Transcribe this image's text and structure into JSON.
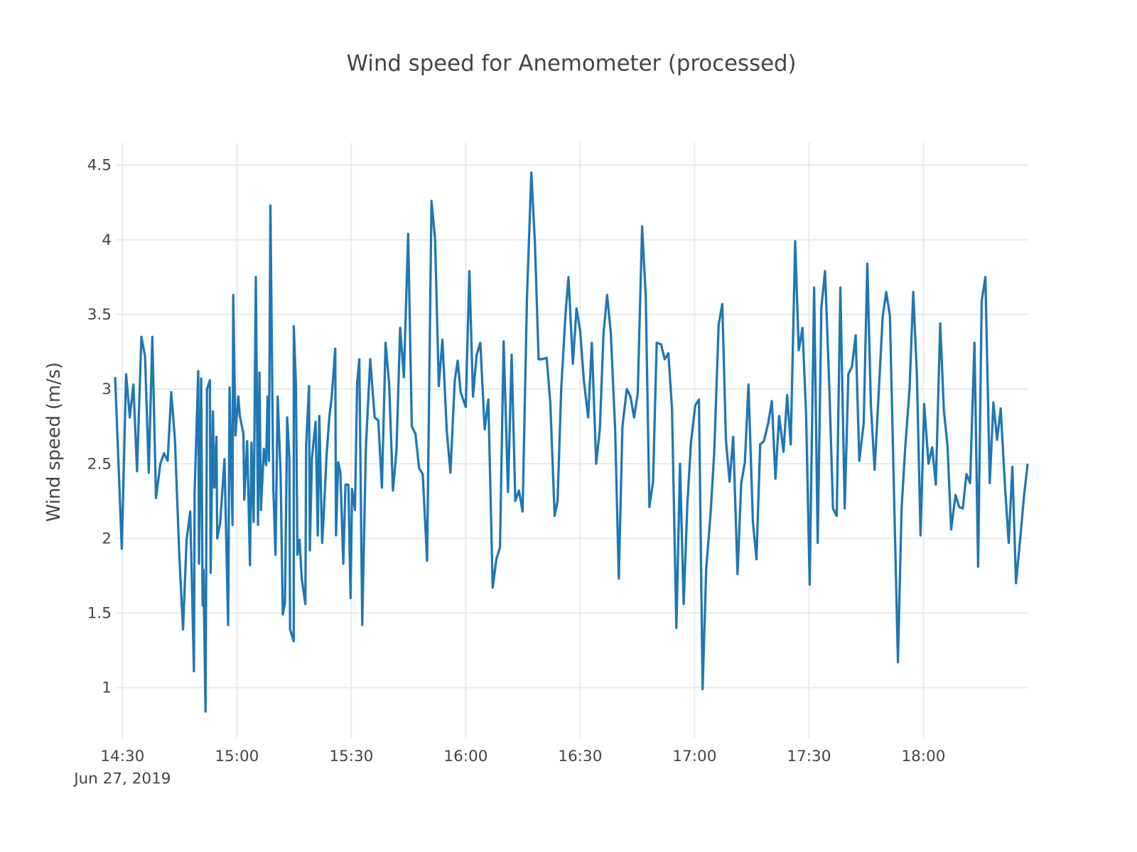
{
  "chart_data": {
    "type": "line",
    "title": "Wind speed for Anemometer (processed)",
    "xlabel": "",
    "ylabel": "Wind speed (m/s)",
    "date": "2019-06-27",
    "xlim": [
      "14:28:05",
      "18:27:20"
    ],
    "ylim": [
      0.66,
      4.65
    ],
    "grid": true,
    "line_color": "#1f77b4",
    "x_ticks": [
      {
        "t": "14:30:00",
        "label": "14:30",
        "sublabel": "Jun 27, 2019"
      },
      {
        "t": "15:00:00",
        "label": "15:00"
      },
      {
        "t": "15:30:00",
        "label": "15:30"
      },
      {
        "t": "16:00:00",
        "label": "16:00"
      },
      {
        "t": "16:30:00",
        "label": "16:30"
      },
      {
        "t": "17:00:00",
        "label": "17:00"
      },
      {
        "t": "17:30:00",
        "label": "17:30"
      },
      {
        "t": "18:00:00",
        "label": "18:00"
      }
    ],
    "y_ticks": [
      {
        "v": 1,
        "label": "1"
      },
      {
        "v": 1.5,
        "label": "1.5"
      },
      {
        "v": 2,
        "label": "2"
      },
      {
        "v": 2.5,
        "label": "2.5"
      },
      {
        "v": 3,
        "label": "3"
      },
      {
        "v": 3.5,
        "label": "3.5"
      },
      {
        "v": 4,
        "label": "4"
      },
      {
        "v": 4.5,
        "label": "4.5"
      }
    ],
    "series": [
      {
        "x": [
          "14:28:05",
          "14:29:49",
          "14:30:57",
          "14:31:55",
          "14:32:52",
          "14:33:49",
          "14:34:58",
          "14:35:55",
          "14:36:53",
          "14:37:50",
          "14:38:47",
          "14:39:56",
          "14:40:53",
          "14:41:51",
          "14:42:48",
          "14:43:45",
          "14:44:54",
          "14:45:52",
          "14:46:49",
          "14:47:46",
          "14:48:44",
          "14:48:55",
          "14:49:52",
          "14:50:04",
          "14:50:38",
          "14:51:01",
          "14:51:13",
          "14:51:47",
          "14:52:10",
          "14:52:56",
          "14:53:07",
          "14:53:42",
          "14:54:05",
          "14:54:39",
          "14:54:50",
          "14:55:36",
          "14:56:45",
          "14:57:42",
          "14:58:05",
          "14:58:51",
          "14:59:03",
          "14:59:37",
          "15:00:23",
          "15:00:46",
          "15:01:43",
          "15:01:55",
          "15:02:41",
          "15:03:26",
          "15:03:49",
          "15:04:24",
          "15:04:58",
          "15:05:32",
          "15:05:55",
          "15:06:18",
          "15:07:04",
          "15:07:39",
          "15:08:02",
          "15:08:24",
          "15:08:47",
          "15:09:33",
          "15:10:08",
          "15:10:42",
          "15:11:28",
          "15:12:02",
          "15:12:37",
          "15:13:11",
          "15:13:45",
          "15:13:57",
          "15:14:54",
          "15:14:55",
          "15:15:29",
          "15:15:52",
          "15:16:26",
          "15:17:00",
          "15:17:58",
          "15:18:09",
          "15:18:55",
          "15:19:07",
          "15:19:41",
          "15:20:38",
          "15:21:13",
          "15:21:36",
          "15:22:21",
          "15:22:44",
          "15:23:30",
          "15:24:16",
          "15:24:50",
          "15:25:48",
          "15:25:59",
          "15:26:34",
          "15:27:08",
          "15:27:54",
          "15:28:28",
          "15:29:14",
          "15:29:48",
          "15:30:11",
          "15:30:57",
          "15:31:32",
          "15:32:06",
          "15:32:52",
          "15:33:49",
          "15:34:58",
          "15:36:07",
          "15:37:04",
          "15:38:02",
          "15:38:59",
          "15:39:56",
          "15:40:54",
          "15:41:51",
          "15:42:48",
          "15:43:46",
          "15:44:54",
          "15:45:52",
          "15:46:49",
          "15:47:46",
          "15:48:44",
          "15:49:52",
          "15:51:01",
          "15:51:58",
          "15:52:56",
          "15:53:53",
          "15:55:02",
          "15:55:59",
          "15:57:08",
          "15:57:54",
          "15:58:40",
          "16:00:00",
          "16:00:57",
          "16:01:55",
          "16:02:52",
          "16:03:49",
          "16:04:58",
          "16:05:55",
          "16:07:04",
          "16:08:01",
          "16:08:59",
          "16:09:56",
          "16:11:05",
          "16:12:02",
          "16:13:00",
          "16:13:57",
          "16:14:54",
          "16:16:03",
          "16:17:12",
          "16:18:09",
          "16:19:06",
          "16:20:04",
          "16:21:13",
          "16:22:10",
          "16:23:19",
          "16:24:05",
          "16:25:02",
          "16:26:11",
          "16:26:57",
          "16:28:06",
          "16:29:03",
          "16:30:00",
          "16:30:57",
          "16:32:06",
          "16:33:04",
          "16:34:12",
          "16:35:10",
          "16:36:07",
          "16:37:04",
          "16:38:02",
          "16:39:11",
          "16:40:08",
          "16:41:05",
          "16:42:14",
          "16:43:11",
          "16:44:08",
          "16:45:06",
          "16:46:15",
          "16:47:12",
          "16:48:09",
          "16:49:07",
          "16:50:04",
          "16:51:13",
          "16:52:10",
          "16:53:07",
          "16:54:05",
          "16:55:13",
          "16:56:11",
          "16:57:08",
          "16:58:05",
          "16:59:03",
          "17:00:11",
          "17:01:09",
          "17:02:06",
          "17:03:03",
          "17:04:12",
          "17:05:10",
          "17:06:18",
          "17:07:16",
          "17:08:13",
          "17:09:10",
          "17:10:08",
          "17:11:16",
          "17:12:14",
          "17:13:11",
          "17:14:08",
          "17:15:17",
          "17:16:14",
          "17:17:12",
          "17:18:09",
          "17:19:18",
          "17:20:15",
          "17:21:12",
          "17:22:10",
          "17:23:19",
          "17:24:16",
          "17:25:13",
          "17:26:22",
          "17:27:19",
          "17:28:17",
          "17:29:14",
          "17:30:11",
          "17:31:20",
          "17:32:17",
          "17:33:15",
          "17:34:12",
          "17:35:21",
          "17:36:18",
          "17:37:16",
          "17:38:13",
          "17:39:22",
          "17:40:19",
          "17:41:16",
          "17:42:14",
          "17:43:11",
          "17:44:20",
          "17:45:17",
          "17:46:14",
          "17:47:12",
          "17:48:20",
          "17:49:18",
          "17:50:15",
          "17:51:13",
          "17:52:10",
          "17:53:19",
          "17:54:16",
          "17:55:13",
          "17:56:22",
          "17:57:20",
          "17:58:17",
          "17:59:14",
          "18:00:12",
          "18:01:20",
          "18:02:18",
          "18:03:15",
          "18:04:24",
          "18:05:21",
          "18:06:19",
          "18:07:16",
          "18:08:25",
          "18:09:22",
          "18:10:19",
          "18:11:17",
          "18:12:14",
          "18:13:23",
          "18:14:20",
          "18:15:17",
          "18:16:15",
          "18:17:24",
          "18:18:21",
          "18:19:18",
          "18:20:16",
          "18:21:24",
          "18:22:22",
          "18:23:19",
          "18:24:16",
          "18:25:25",
          "18:26:22",
          "18:27:20"
        ],
        "y": [
          3.08,
          1.93,
          3.1,
          2.81,
          3.03,
          2.45,
          3.35,
          3.22,
          2.44,
          3.35,
          2.27,
          2.5,
          2.57,
          2.52,
          2.98,
          2.66,
          1.89,
          1.39,
          1.99,
          2.18,
          1.11,
          2.3,
          3.12,
          1.83,
          3.07,
          1.55,
          1.79,
          0.84,
          3.0,
          3.06,
          1.77,
          2.85,
          2.34,
          2.68,
          2.0,
          2.1,
          2.53,
          1.42,
          3.01,
          2.09,
          3.63,
          2.69,
          2.95,
          2.82,
          2.7,
          2.26,
          2.65,
          1.82,
          2.64,
          2.11,
          3.75,
          2.09,
          3.11,
          2.19,
          2.6,
          2.49,
          2.95,
          2.52,
          4.23,
          2.34,
          1.89,
          2.95,
          2.43,
          1.49,
          1.57,
          2.81,
          2.54,
          1.39,
          1.31,
          3.42,
          3.03,
          1.89,
          1.99,
          1.73,
          1.56,
          2.62,
          3.02,
          1.92,
          2.54,
          2.78,
          2.02,
          2.82,
          1.97,
          2.14,
          2.55,
          2.82,
          2.94,
          3.27,
          2.02,
          2.51,
          2.44,
          1.83,
          2.36,
          2.36,
          1.6,
          2.33,
          2.19,
          3.04,
          3.2,
          1.42,
          2.61,
          3.2,
          2.81,
          2.79,
          2.34,
          3.31,
          3.03,
          2.32,
          2.59,
          3.41,
          3.08,
          4.04,
          2.75,
          2.7,
          2.47,
          2.43,
          1.85,
          4.26,
          4.0,
          3.02,
          3.33,
          2.72,
          2.44,
          3.06,
          3.19,
          2.98,
          2.88,
          3.79,
          2.95,
          3.23,
          3.31,
          2.73,
          2.93,
          1.67,
          1.86,
          1.94,
          3.32,
          2.31,
          3.23,
          2.25,
          2.32,
          2.18,
          3.61,
          4.45,
          3.97,
          3.2,
          3.2,
          3.21,
          2.91,
          2.15,
          2.25,
          3.0,
          3.51,
          3.75,
          3.17,
          3.54,
          3.39,
          3.06,
          2.81,
          3.31,
          2.5,
          2.73,
          3.37,
          3.63,
          3.38,
          2.73,
          1.73,
          2.75,
          3.0,
          2.95,
          2.81,
          2.97,
          4.09,
          3.62,
          2.21,
          2.38,
          3.31,
          3.3,
          3.2,
          3.24,
          2.87,
          1.4,
          2.5,
          1.56,
          2.22,
          2.64,
          2.89,
          2.93,
          0.99,
          1.79,
          2.17,
          2.58,
          3.43,
          3.57,
          2.66,
          2.38,
          2.68,
          1.76,
          2.37,
          2.51,
          3.03,
          2.11,
          1.86,
          2.63,
          2.65,
          2.77,
          2.92,
          2.4,
          2.82,
          2.58,
          2.96,
          2.63,
          3.99,
          3.26,
          3.41,
          2.83,
          1.69,
          3.68,
          1.97,
          3.55,
          3.79,
          2.99,
          2.2,
          2.15,
          3.68,
          2.2,
          3.1,
          3.15,
          3.36,
          2.52,
          2.77,
          3.84,
          2.89,
          2.46,
          3.0,
          3.48,
          3.65,
          3.49,
          2.43,
          1.17,
          2.2,
          2.6,
          3.01,
          3.65,
          3.1,
          2.02,
          2.9,
          2.5,
          2.61,
          2.36,
          3.44,
          2.86,
          2.62,
          2.06,
          2.29,
          2.21,
          2.2,
          2.43,
          2.37,
          3.31,
          1.81,
          3.59,
          3.75,
          2.37,
          2.91,
          2.66,
          2.87,
          2.34,
          1.97,
          2.48,
          1.7,
          2.01,
          2.28,
          2.5
        ]
      }
    ]
  }
}
